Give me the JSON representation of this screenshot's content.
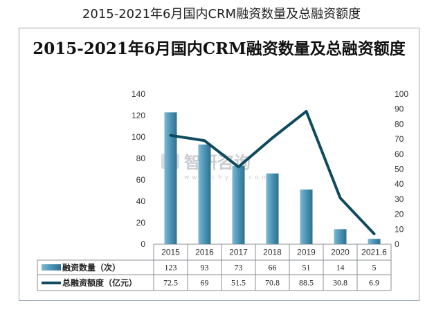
{
  "page": {
    "title": "2015-2021年6月国内CRM融资数量及总融资额度"
  },
  "watermark": {
    "text": "智研咨询",
    "url": "www.chyxx.com"
  },
  "chart_data": {
    "type": "bar",
    "title": "2015-2021年6月国内CRM融资数量及总融资额度",
    "categories": [
      "2015",
      "2016",
      "2017",
      "2018",
      "2019",
      "2020",
      "2021.6"
    ],
    "series": [
      {
        "name": "融资数量（次）",
        "type": "bar",
        "axis": "left",
        "values": [
          123,
          93,
          73,
          66,
          51,
          14,
          5
        ],
        "color": "#4f97b8"
      },
      {
        "name": "总融资额度（亿元）",
        "type": "line",
        "axis": "right",
        "values": [
          72.5,
          69,
          51.5,
          70.8,
          88.5,
          30.8,
          6.9
        ],
        "color": "#0f4a5e"
      }
    ],
    "y_left": {
      "min": 0,
      "max": 140,
      "ticks": [
        0,
        20,
        40,
        60,
        80,
        100,
        120,
        140
      ]
    },
    "y_right": {
      "min": 0,
      "max": 100,
      "ticks": [
        0,
        10,
        20,
        30,
        40,
        50,
        60,
        70,
        80,
        90,
        100
      ]
    },
    "grid": false,
    "legend": "data-table-below"
  }
}
